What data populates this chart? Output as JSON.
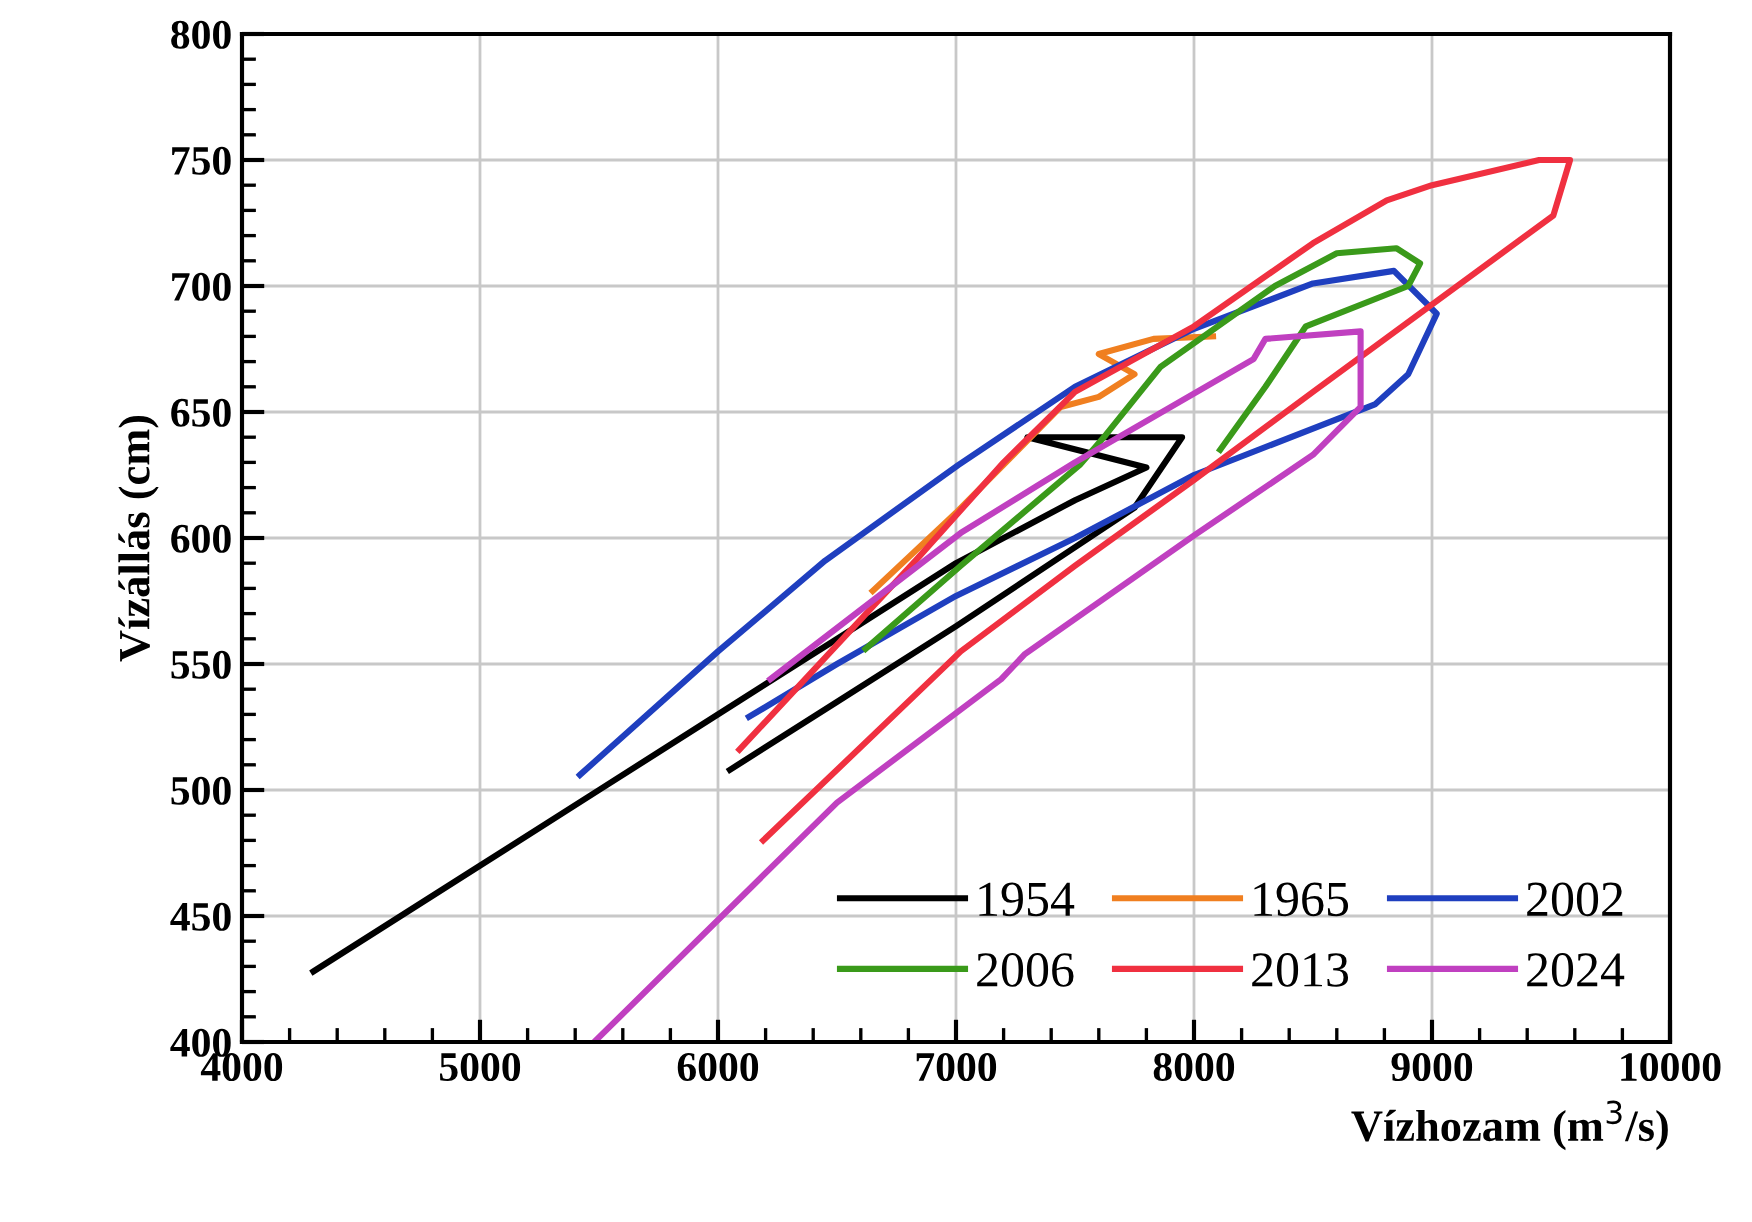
{
  "chart_data": {
    "type": "line",
    "xlabel": "Vízhozam (m$^{3}$/s)",
    "ylabel": "Vízállás (cm)",
    "xlim": [
      4000,
      10000
    ],
    "xticks": [
      4000,
      5000,
      6000,
      7000,
      8000,
      9000,
      10000
    ],
    "ylim": [
      400,
      800
    ],
    "yticks": [
      400,
      450,
      500,
      550,
      600,
      650,
      700,
      750,
      800
    ],
    "grid": true,
    "legend": "bottom right",
    "marker": "none",
    "line_style": "solid",
    "series": [
      {
        "name": "1954",
        "color": "#000000",
        "x": [
          4300,
          5000,
          5500,
          6000,
          6500,
          7000,
          7500,
          7800,
          7300,
          7950,
          7750,
          7000,
          6500,
          6050
        ],
        "values": [
          428,
          470,
          500,
          530,
          560,
          590,
          615,
          628,
          640,
          640,
          612,
          565,
          535,
          508
        ]
      },
      {
        "name": "1965",
        "color": "#f07f20",
        "x": [
          6650,
          7000,
          7440,
          7600,
          7750,
          7600,
          7830,
          8080
        ],
        "values": [
          579,
          610,
          652,
          656,
          665,
          673,
          679,
          680
        ]
      },
      {
        "name": "2002",
        "color": "#1f3fbf",
        "x": [
          5420,
          6000,
          6450,
          7010,
          7500,
          8000,
          8500,
          8840,
          9020,
          8900,
          8760,
          8000,
          7500,
          7000,
          6500,
          6130
        ],
        "values": [
          506,
          555,
          591,
          629,
          660,
          683,
          701,
          706,
          689,
          665,
          653,
          625,
          600,
          577,
          550,
          529
        ]
      },
      {
        "name": "2006",
        "color": "#3a9a1a",
        "x": [
          6620,
          7020,
          7520,
          7630,
          7860,
          8340,
          8600,
          8850,
          8950,
          8900,
          8470,
          8300,
          8110
        ],
        "values": [
          556,
          589,
          629,
          641,
          668,
          700,
          713,
          715,
          709,
          700,
          684,
          660,
          635
        ]
      },
      {
        "name": "2013",
        "color": "#f03040",
        "x": [
          6090,
          6830,
          7200,
          7500,
          8000,
          8500,
          8810,
          9000,
          9450,
          9580,
          9510,
          8500,
          8000,
          7500,
          7020,
          6190
        ],
        "values": [
          516,
          591,
          630,
          658,
          684,
          717,
          734,
          740,
          750,
          750,
          728,
          658,
          623,
          589,
          555,
          480
        ]
      },
      {
        "name": "2024",
        "color": "#c040c0",
        "x": [
          5480,
          6500,
          7190,
          7290,
          8000,
          8500,
          8700,
          8700,
          8300,
          8250,
          7500,
          7020,
          6220
        ],
        "values": [
          400,
          495,
          544,
          554,
          601,
          633,
          652,
          682,
          679,
          671,
          630,
          602,
          544
        ]
      }
    ]
  }
}
